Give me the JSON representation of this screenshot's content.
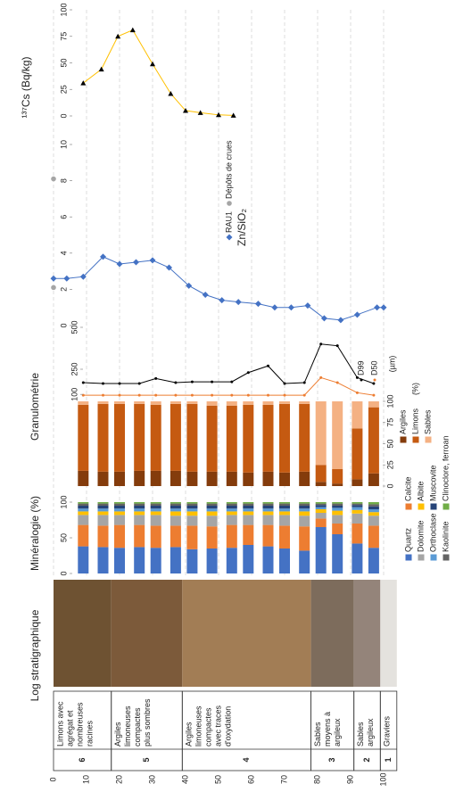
{
  "chart_data": [
    {
      "type": "strat",
      "title": "Log stratigraphique",
      "ylim": [
        0,
        105
      ],
      "yticks": [
        0,
        10,
        20,
        30,
        40,
        50,
        60,
        70,
        80,
        90,
        100
      ],
      "grid": true,
      "units": [
        {
          "number": "6",
          "lines": [
            "Limons avec",
            "agrégat et",
            "nombreuses",
            "racines"
          ],
          "top": 0,
          "bottom": 17.5,
          "color": "#6e5232"
        },
        {
          "number": "5",
          "lines": [
            "Argiles",
            "limoneuses",
            "compactes",
            "plus sombres"
          ],
          "top": 17.5,
          "bottom": 39,
          "color": "#7c5a3a"
        },
        {
          "number": "4",
          "lines": [
            "Argiles",
            "limoneuses",
            "compactes",
            "avec traces",
            "d'oxydation"
          ],
          "top": 39,
          "bottom": 78,
          "color": "#a27d55"
        },
        {
          "number": "3",
          "lines": [
            "Sables",
            "moyens à",
            "argileux"
          ],
          "top": 78,
          "bottom": 91,
          "color": "#7d6c5c"
        },
        {
          "number": "2",
          "lines": [
            "Sables",
            "argileux"
          ],
          "top": 91,
          "bottom": 99,
          "color": "#94847a"
        },
        {
          "number": "1",
          "lines": [
            "Graviers"
          ],
          "top": 99,
          "bottom": 104,
          "color": "#e4e2de"
        }
      ]
    },
    {
      "type": "bar",
      "title": "Minéralogie (%)",
      "xlim": [
        0,
        100
      ],
      "xticks": [
        0,
        50,
        100
      ],
      "depths": [
        9,
        15,
        20,
        26,
        31,
        37,
        42,
        48,
        54,
        59,
        65,
        70,
        76,
        81,
        86,
        92,
        97
      ],
      "series": [
        {
          "name": "Quartz",
          "color": "#4472c4",
          "values": [
            38,
            37,
            36,
            37,
            36,
            37,
            34,
            35,
            36,
            40,
            38,
            35,
            32,
            65,
            55,
            42,
            36
          ]
        },
        {
          "name": "Calcite",
          "color": "#ed7d31",
          "values": [
            30,
            30,
            32,
            31,
            31,
            30,
            33,
            31,
            32,
            28,
            30,
            32,
            34,
            12,
            15,
            28,
            31
          ]
        },
        {
          "name": "Dolomite",
          "color": "#a5a5a5",
          "values": [
            14,
            15,
            14,
            14,
            15,
            14,
            14,
            15,
            14,
            14,
            14,
            15,
            15,
            8,
            12,
            14,
            14
          ]
        },
        {
          "name": "Albite",
          "color": "#ffc000",
          "values": [
            5,
            5,
            5,
            5,
            5,
            6,
            6,
            6,
            5,
            5,
            5,
            5,
            6,
            5,
            6,
            5,
            5
          ]
        },
        {
          "name": "Orthoclase",
          "color": "#5b9bd5",
          "values": [
            4,
            4,
            4,
            4,
            4,
            4,
            4,
            4,
            4,
            4,
            4,
            4,
            4,
            3,
            4,
            4,
            4
          ]
        },
        {
          "name": "Muscovite",
          "color": "#264478",
          "values": [
            4,
            4,
            4,
            4,
            4,
            4,
            4,
            4,
            4,
            4,
            4,
            4,
            4,
            3,
            3,
            3,
            4
          ]
        },
        {
          "name": "Kaolinite",
          "color": "#636363",
          "values": [
            3,
            3,
            3,
            3,
            3,
            3,
            3,
            3,
            3,
            3,
            3,
            3,
            3,
            2,
            3,
            2,
            3
          ]
        },
        {
          "name": "Clinoclore, ferroan",
          "color": "#70ad47",
          "values": [
            2,
            2,
            2,
            2,
            2,
            2,
            2,
            2,
            2,
            2,
            2,
            2,
            2,
            2,
            2,
            2,
            3
          ]
        }
      ]
    },
    {
      "type": "bar",
      "title": "Granulométrie",
      "legend_title": "(%)",
      "xlim": [
        0,
        100
      ],
      "xticks": [
        0,
        25,
        50,
        75,
        100
      ],
      "depths": [
        9,
        15,
        20,
        26,
        31,
        37,
        42,
        48,
        54,
        59,
        65,
        70,
        76,
        81,
        86,
        92,
        97
      ],
      "series": [
        {
          "name": "Argiles",
          "color": "#843c0c",
          "values": [
            18,
            17,
            17,
            18,
            18,
            18,
            17,
            17,
            17,
            16,
            17,
            16,
            17,
            5,
            3,
            8,
            15
          ]
        },
        {
          "name": "Limons",
          "color": "#c55a11",
          "values": [
            78,
            80,
            80,
            79,
            78,
            79,
            80,
            78,
            78,
            80,
            79,
            81,
            80,
            20,
            17,
            60,
            78
          ]
        },
        {
          "name": "Sables",
          "color": "#f4b183",
          "values": [
            4,
            3,
            3,
            3,
            4,
            3,
            3,
            5,
            5,
            4,
            4,
            3,
            3,
            75,
            80,
            32,
            7
          ]
        }
      ]
    },
    {
      "type": "line",
      "unit": "(µm)",
      "xlim": [
        0,
        500
      ],
      "xticks": [
        100,
        250,
        500
      ],
      "depths": [
        9,
        15,
        20,
        26,
        31,
        37,
        42,
        48,
        54,
        59,
        65,
        70,
        76,
        81,
        86,
        92,
        97
      ],
      "series": [
        {
          "name": "D99",
          "color": "#000000",
          "values": [
            170,
            165,
            165,
            165,
            195,
            170,
            175,
            175,
            175,
            230,
            270,
            165,
            170,
            400,
            390,
            200,
            165
          ]
        },
        {
          "name": "D50",
          "color": "#ed7d31",
          "values": [
            95,
            95,
            95,
            95,
            95,
            95,
            95,
            95,
            95,
            95,
            95,
            95,
            95,
            200,
            170,
            110,
            95
          ]
        }
      ]
    },
    {
      "type": "line",
      "title": "Zn/SiO₂",
      "xlim": [
        0,
        10
      ],
      "xticks": [
        0,
        2,
        4,
        6,
        8,
        10
      ],
      "series": [
        {
          "name": "RAU1",
          "color": "#4472c4",
          "marker": "diamond",
          "line": true,
          "depths": [
            0,
            4,
            9,
            15,
            20,
            25,
            30,
            35,
            41,
            46,
            51,
            56,
            62,
            67,
            72,
            77,
            82,
            87,
            92,
            98,
            100
          ],
          "values": [
            2.6,
            2.6,
            2.7,
            3.8,
            3.4,
            3.5,
            3.6,
            3.2,
            2.2,
            1.7,
            1.4,
            1.3,
            1.2,
            1.0,
            1.0,
            1.1,
            0.4,
            0.3,
            0.6,
            1.0,
            1.0
          ]
        },
        {
          "name": "Dépôts de crues",
          "color": "#a5a5a5",
          "marker": "circle",
          "line": false,
          "depths": [
            0,
            0
          ],
          "values": [
            2.1,
            8.1
          ]
        }
      ]
    },
    {
      "type": "line",
      "title": "¹³⁷Cs (Bq/kg)",
      "xlim": [
        0,
        100
      ],
      "xticks": [
        0,
        25,
        50,
        75,
        100
      ],
      "series": [
        {
          "color": "#ffc000",
          "marker": "triangle",
          "line": true,
          "depths": [
            9,
            14.5,
            19.5,
            24,
            30,
            35.5,
            40,
            44.5,
            50,
            54.5
          ],
          "values": [
            31,
            44,
            75,
            81,
            49,
            21,
            5,
            3,
            1,
            0.5
          ]
        }
      ]
    }
  ]
}
